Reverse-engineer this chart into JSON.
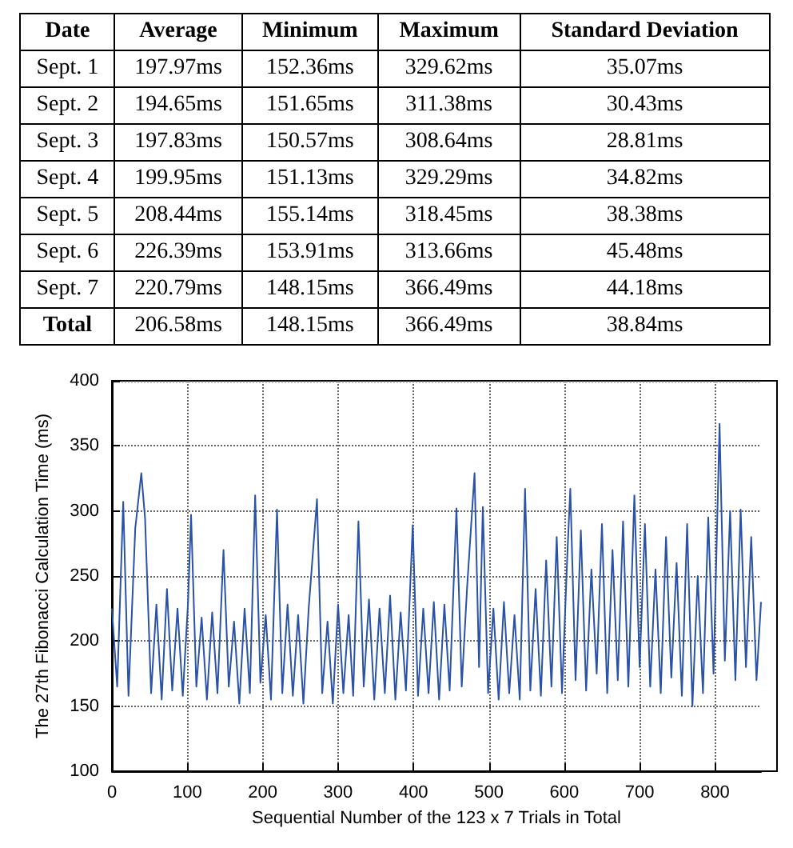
{
  "chart_data": [
    {
      "type": "other",
      "annotations": [
        "Date",
        "Average",
        "Minimum",
        "Maximum",
        "Standard Deviation",
        "Sept. 1",
        "197.97ms",
        "152.36ms",
        "329.62ms",
        "35.07ms",
        "Sept. 2",
        "194.65ms",
        "151.65ms",
        "311.38ms",
        "30.43ms",
        "Sept. 3",
        "197.83ms",
        "150.57ms",
        "308.64ms",
        "28.81ms",
        "Sept. 4",
        "199.95ms",
        "151.13ms",
        "329.29ms",
        "34.82ms",
        "Sept. 5",
        "208.44ms",
        "155.14ms",
        "318.45ms",
        "38.38ms",
        "Sept. 6",
        "226.39ms",
        "153.91ms",
        "313.66ms",
        "45.48ms",
        "Sept. 7",
        "220.79ms",
        "148.15ms",
        "366.49ms",
        "44.18ms",
        "Total",
        "206.58ms",
        "148.15ms",
        "366.49ms",
        "38.84ms"
      ]
    },
    {
      "type": "line",
      "xlabel": "Sequential Number of the 123 x 7 Trials in Total",
      "ylabel": "The 27th Fibonacci Calculation Time (ms)",
      "xlim": [
        0,
        861
      ],
      "xticks": [
        0,
        100,
        200,
        300,
        400,
        500,
        600,
        700,
        800
      ],
      "ylim": [
        100,
        400
      ],
      "yticks": [
        100,
        150,
        200,
        250,
        300,
        350,
        400
      ],
      "grid": true,
      "marker": "none",
      "line_style": "solid",
      "series": [
        {
          "color": "#2a52a8",
          "x": [
            0,
            7,
            15,
            22,
            31,
            39,
            44,
            52,
            59,
            66,
            73,
            80,
            87,
            94,
            101,
            105,
            112,
            119,
            126,
            133,
            140,
            148,
            155,
            162,
            169,
            176,
            183,
            190,
            197,
            204,
            211,
            219,
            226,
            233,
            240,
            247,
            254,
            261,
            272,
            279,
            286,
            293,
            300,
            307,
            314,
            320,
            327,
            334,
            341,
            348,
            355,
            362,
            369,
            376,
            383,
            390,
            399,
            406,
            413,
            420,
            427,
            434,
            441,
            448,
            457,
            464,
            471,
            481,
            487,
            492,
            499,
            506,
            513,
            520,
            527,
            534,
            541,
            548,
            555,
            562,
            569,
            576,
            583,
            590,
            597,
            604,
            608,
            615,
            622,
            629,
            636,
            643,
            650,
            657,
            664,
            671,
            678,
            685,
            693,
            700,
            707,
            714,
            721,
            728,
            735,
            742,
            749,
            756,
            763,
            770,
            777,
            784,
            791,
            798,
            806,
            813,
            820,
            827,
            834,
            841,
            848,
            855,
            861
          ],
          "values": [
            225,
            165,
            307,
            158,
            287,
            329,
            294,
            160,
            228,
            155,
            240,
            162,
            225,
            158,
            230,
            297,
            165,
            218,
            155,
            222,
            160,
            270,
            165,
            215,
            152,
            225,
            160,
            312,
            168,
            220,
            155,
            301,
            160,
            228,
            158,
            220,
            152,
            225,
            309,
            160,
            215,
            152,
            228,
            160,
            220,
            158,
            292,
            165,
            232,
            155,
            225,
            160,
            235,
            155,
            222,
            162,
            289,
            158,
            225,
            160,
            230,
            155,
            228,
            162,
            302,
            165,
            240,
            329,
            180,
            303,
            160,
            225,
            155,
            230,
            160,
            220,
            155,
            317,
            162,
            240,
            158,
            262,
            165,
            280,
            160,
            265,
            317,
            170,
            285,
            162,
            255,
            175,
            290,
            160,
            270,
            170,
            292,
            165,
            312,
            180,
            290,
            165,
            255,
            160,
            280,
            172,
            260,
            158,
            290,
            150,
            250,
            160,
            295,
            175,
            367,
            185,
            300,
            170,
            301,
            180,
            280,
            170,
            230
          ]
        }
      ]
    }
  ]
}
